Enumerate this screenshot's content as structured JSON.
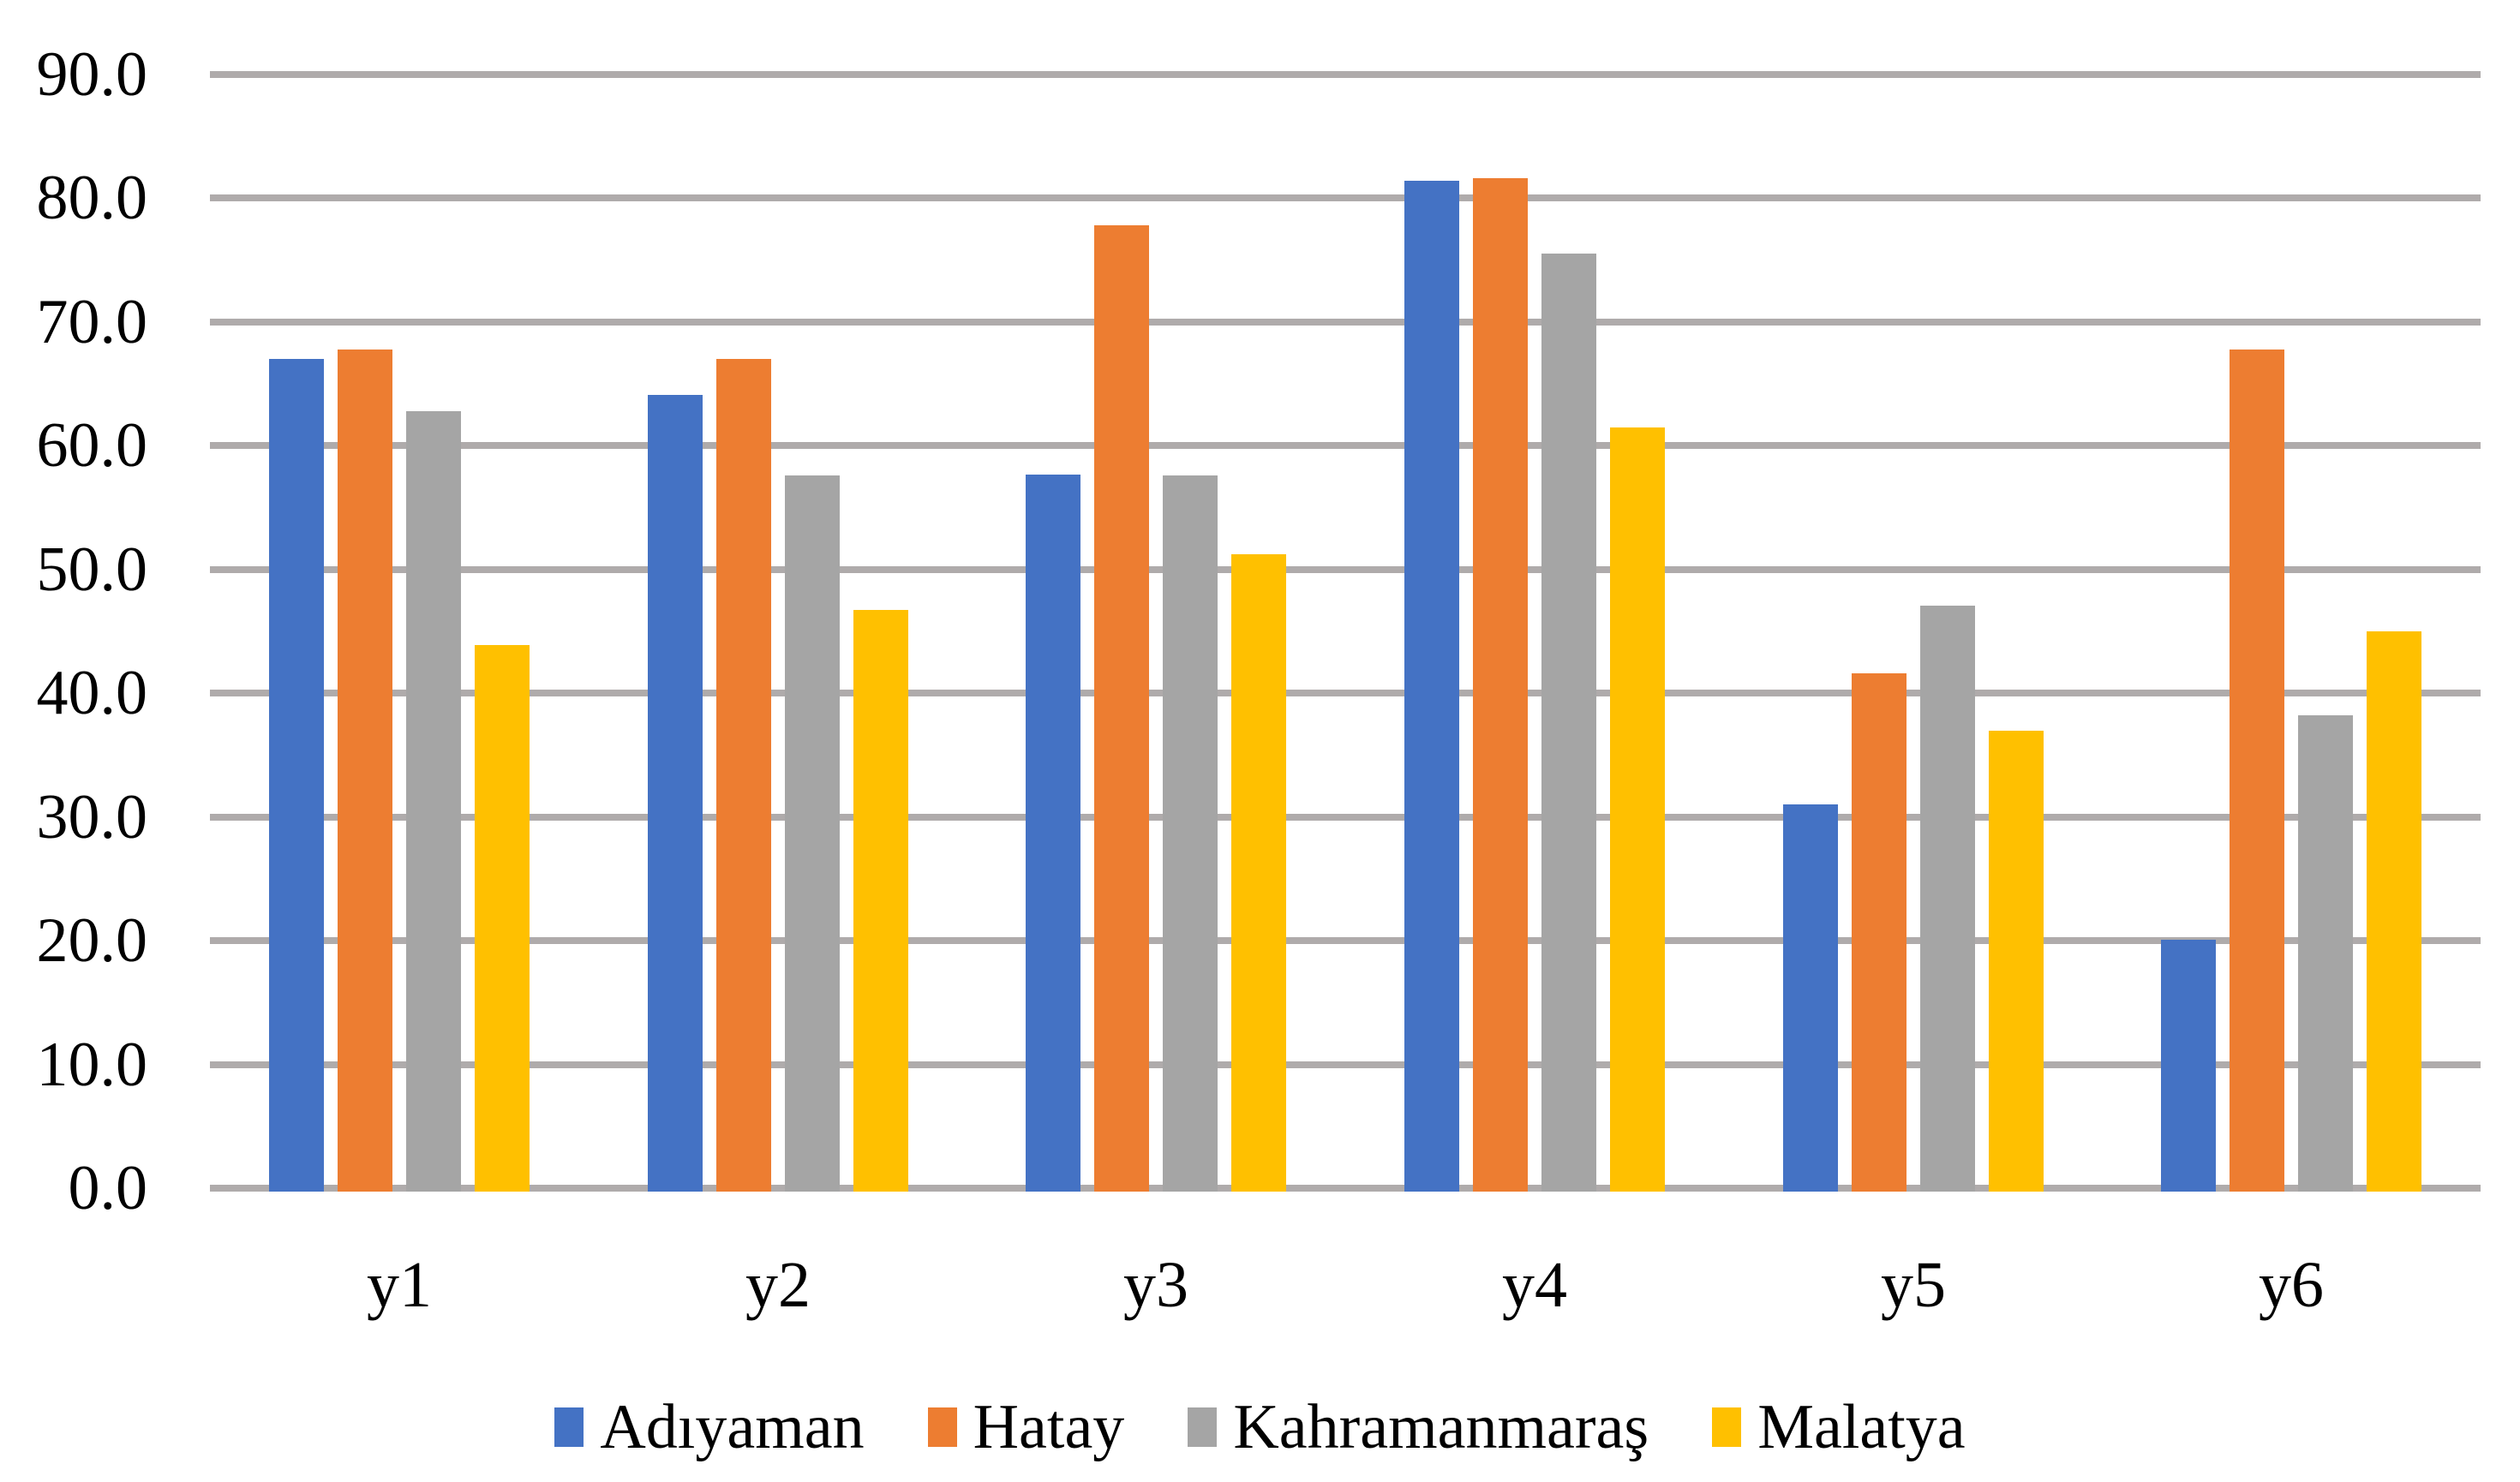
{
  "chart_data": {
    "type": "bar",
    "title": "",
    "xlabel": "",
    "ylabel": "",
    "categories": [
      "y1",
      "y2",
      "y3",
      "y4",
      "y5",
      "y6"
    ],
    "series": [
      {
        "name": "Adıyaman",
        "color": "#4472C4",
        "values": [
          67.0,
          64.1,
          57.7,
          81.4,
          31.0,
          20.1
        ]
      },
      {
        "name": "Hatay",
        "color": "#ED7D31",
        "values": [
          67.8,
          67.0,
          77.8,
          81.6,
          41.6,
          67.8
        ]
      },
      {
        "name": "Kahramanmaraş",
        "color": "#A5A5A5",
        "values": [
          62.8,
          57.6,
          57.6,
          75.5,
          47.1,
          38.2
        ]
      },
      {
        "name": "Malatya",
        "color": "#FFC000",
        "values": [
          43.9,
          46.7,
          51.2,
          61.5,
          37.0,
          45.0
        ]
      }
    ],
    "ylim": [
      0,
      90
    ],
    "ytick_step": 10,
    "ytick_labels": [
      "90.0",
      "80.0",
      "70.0",
      "60.0",
      "50.0",
      "40.0",
      "30.0",
      "20.0",
      "10.0",
      "0.0"
    ],
    "grid": "horizontal",
    "grid_color": "#AFABAB",
    "axis_line_color": "#AFABAB",
    "text_color": "#000000",
    "background_color": "#FFFFFF",
    "legend_position": "bottom"
  }
}
